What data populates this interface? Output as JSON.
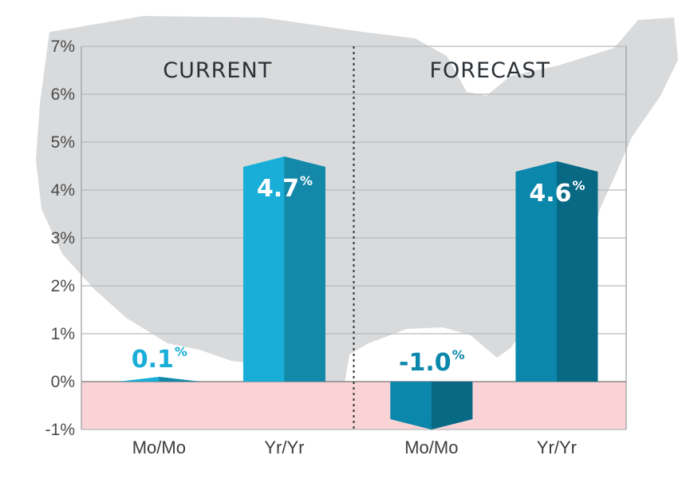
{
  "chart_data": {
    "type": "bar",
    "groups": [
      {
        "label": "CURRENT",
        "bars": [
          {
            "category": "Mo/Mo",
            "value": 0.1,
            "value_text": "0.1",
            "unit_text": "%",
            "color": "#18AED8"
          },
          {
            "category": "Yr/Yr",
            "value": 4.7,
            "value_text": "4.7",
            "unit_text": "%",
            "color": "#18AED8"
          }
        ]
      },
      {
        "label": "FORECAST",
        "bars": [
          {
            "category": "Mo/Mo",
            "value": -1.0,
            "value_text": "-1.0",
            "unit_text": "%",
            "color": "#0A87AB"
          },
          {
            "category": "Yr/Yr",
            "value": 4.6,
            "value_text": "4.6",
            "unit_text": "%",
            "color": "#0A87AB"
          }
        ]
      }
    ],
    "y_ticks": [
      "-1%",
      "0%",
      "1%",
      "2%",
      "3%",
      "4%",
      "5%",
      "6%",
      "7%"
    ],
    "ylim": [
      -1,
      7
    ],
    "grid": true,
    "negative_region_color": "#F9D3D6",
    "background_map": "united-states-silhouette"
  }
}
